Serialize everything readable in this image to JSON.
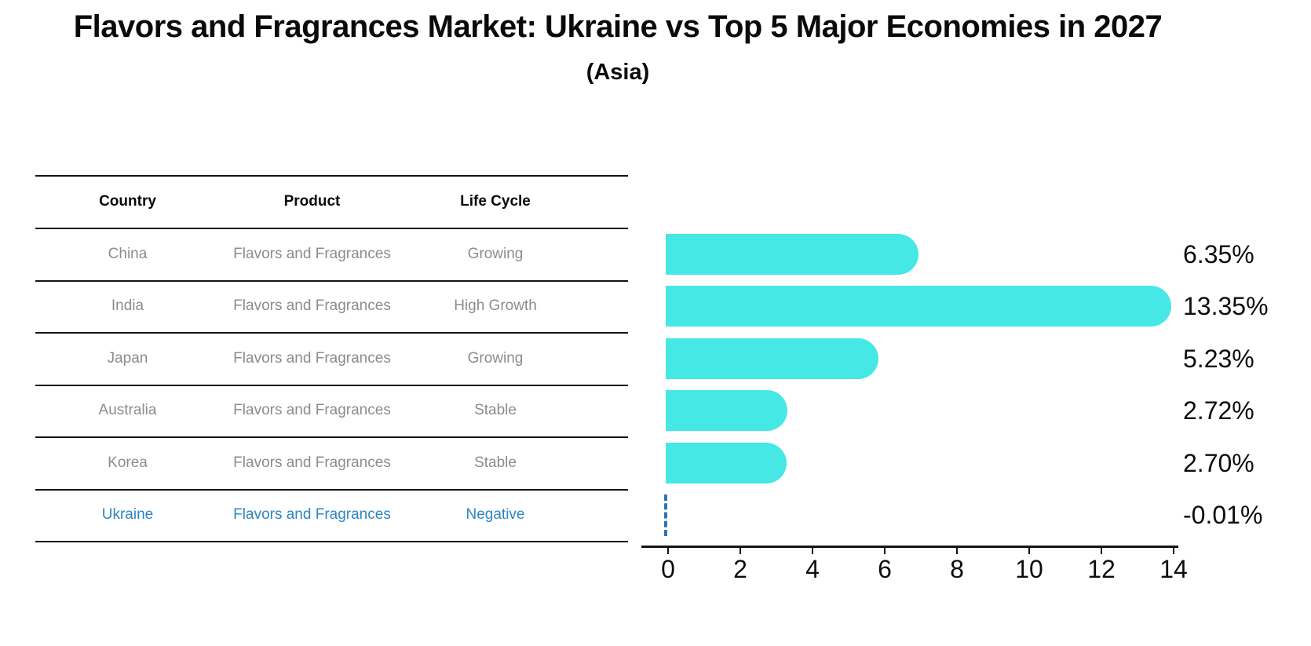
{
  "title": "Flavors and Fragrances Market: Ukraine vs Top 5 Major Economies in 2027",
  "subtitle": "(Asia)",
  "table": {
    "headers": [
      "Country",
      "Product",
      "Life Cycle"
    ],
    "rows": [
      {
        "country": "China",
        "product": "Flavors and Fragrances",
        "life_cycle": "Growing"
      },
      {
        "country": "India",
        "product": "Flavors and Fragrances",
        "life_cycle": "High Growth"
      },
      {
        "country": "Japan",
        "product": "Flavors and Fragrances",
        "life_cycle": "Growing"
      },
      {
        "country": "Australia",
        "product": "Flavors and Fragrances",
        "life_cycle": "Stable"
      },
      {
        "country": "Korea",
        "product": "Flavors and Fragrances",
        "life_cycle": "Stable"
      },
      {
        "country": "Ukraine",
        "product": "Flavors and Fragrances",
        "life_cycle": "Negative"
      }
    ],
    "highlighted_country": "Ukraine"
  },
  "chart_data": {
    "type": "bar",
    "orientation": "horizontal",
    "categories": [
      "China",
      "India",
      "Japan",
      "Australia",
      "Korea",
      "Ukraine"
    ],
    "values": [
      6.35,
      13.35,
      5.23,
      2.72,
      2.7,
      -0.01
    ],
    "value_labels": [
      "6.35%",
      "13.35%",
      "5.23%",
      "2.72%",
      "2.70%",
      "-0.01%"
    ],
    "xlim": [
      0,
      14
    ],
    "xticks": [
      0,
      2,
      4,
      6,
      8,
      10,
      12,
      14
    ],
    "xtick_labels": [
      "0",
      "2",
      "4",
      "6",
      "8",
      "10",
      "12",
      "14"
    ],
    "grid": false,
    "legend": false,
    "bar_color": "#45e8e4",
    "negative_marker_color": "#2e74b5",
    "highlight_color": "#2e86c1",
    "highlight_index": 5
  }
}
